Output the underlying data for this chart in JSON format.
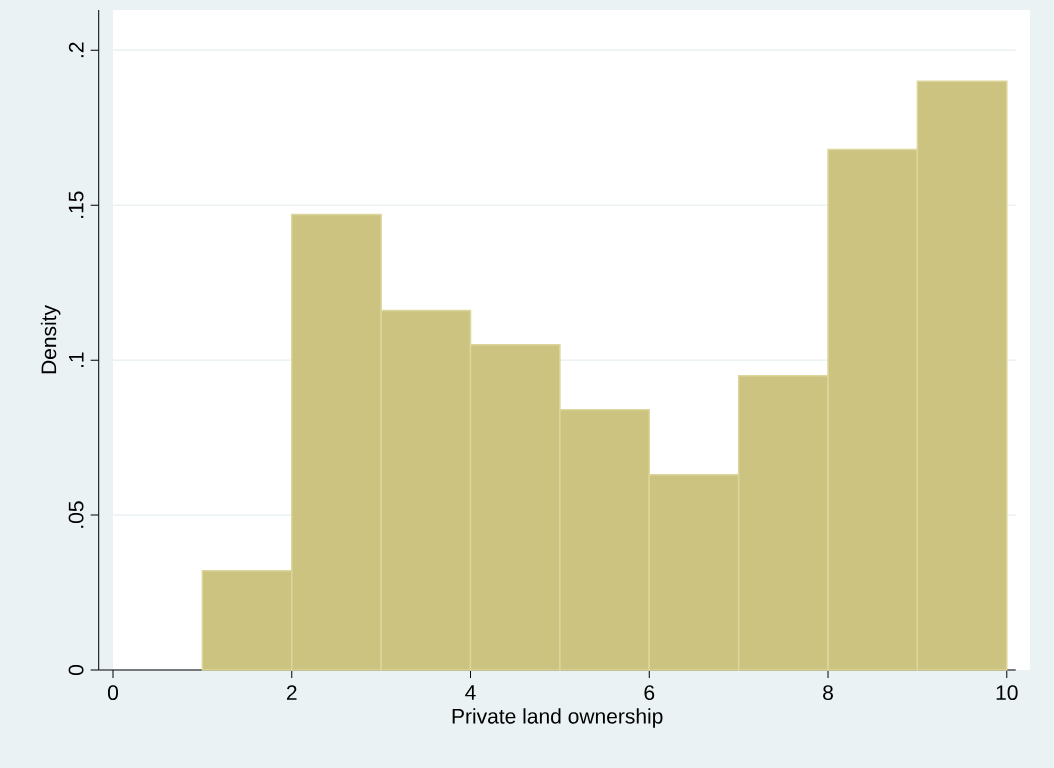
{
  "chart_data": {
    "type": "histogram",
    "xlabel": "Private land ownership",
    "ylabel": "Density",
    "bins": [
      1,
      2,
      3,
      4,
      5,
      6,
      7,
      8,
      9,
      10
    ],
    "values": [
      0.032,
      0.147,
      0.116,
      0.105,
      0.084,
      0.063,
      0.095,
      0.168,
      0.19
    ],
    "color": "#cbc37f",
    "xlim": [
      -0.16,
      10.1
    ],
    "ylim": [
      0,
      0.213
    ],
    "xticks": [
      0,
      2,
      4,
      6,
      8,
      10
    ],
    "yticks": [
      0,
      {
        "value": 0.05,
        "label": ".05"
      },
      {
        "value": 0.1,
        "label": ".1"
      },
      {
        "value": 0.15,
        "label": ".15"
      },
      {
        "value": 0.2,
        "label": ".2"
      }
    ],
    "grid": "y"
  }
}
